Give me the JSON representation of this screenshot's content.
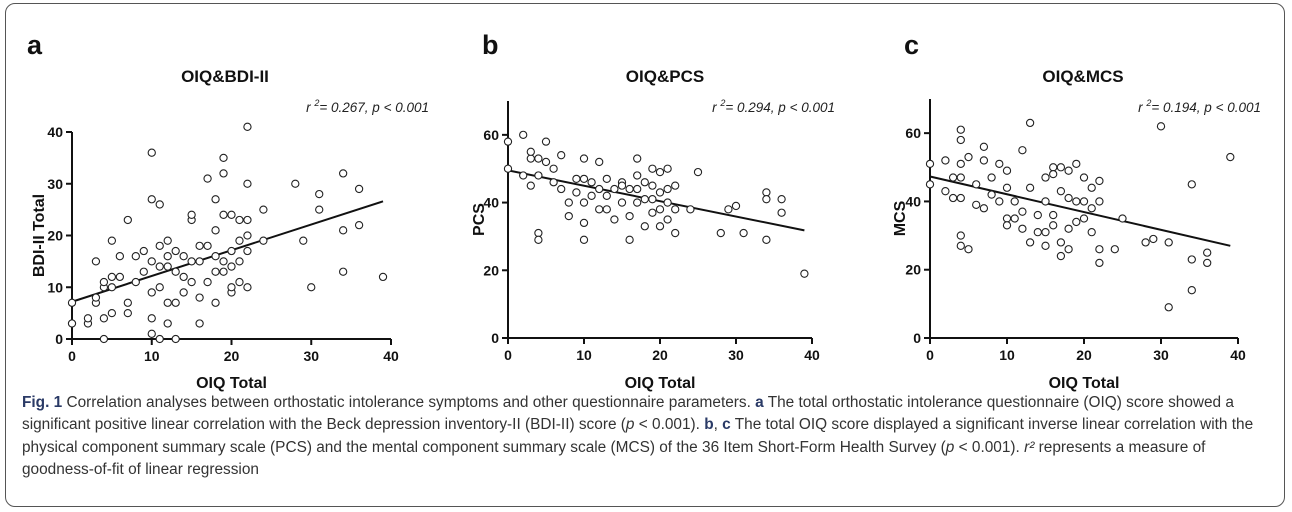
{
  "chart_data": [
    {
      "panel_letter": "a",
      "type": "scatter",
      "title": "OIQ&BDI-II",
      "xlabel": "OIQ Total",
      "ylabel": "BDI-II  Total",
      "annotation": {
        "r2_value": "0.267",
        "p": "< 0.001"
      },
      "xlim": [
        0,
        40
      ],
      "ylim": [
        0,
        40
      ],
      "xticks": [
        0,
        10,
        20,
        30,
        40
      ],
      "yticks": [
        0,
        10,
        20,
        30,
        40
      ],
      "points": [
        [
          0,
          3
        ],
        [
          0,
          7
        ],
        [
          2,
          3
        ],
        [
          2,
          4
        ],
        [
          3,
          7
        ],
        [
          3,
          8
        ],
        [
          3,
          15
        ],
        [
          4,
          0
        ],
        [
          4,
          4
        ],
        [
          4,
          10
        ],
        [
          4,
          11
        ],
        [
          5,
          5
        ],
        [
          5,
          10
        ],
        [
          5,
          12
        ],
        [
          5,
          19
        ],
        [
          6,
          12
        ],
        [
          6,
          16
        ],
        [
          7,
          5
        ],
        [
          7,
          7
        ],
        [
          7,
          23
        ],
        [
          8,
          11
        ],
        [
          8,
          16
        ],
        [
          9,
          13
        ],
        [
          9,
          17
        ],
        [
          10,
          1
        ],
        [
          10,
          4
        ],
        [
          10,
          9
        ],
        [
          10,
          15
        ],
        [
          10,
          27
        ],
        [
          10,
          36
        ],
        [
          11,
          0
        ],
        [
          11,
          10
        ],
        [
          11,
          14
        ],
        [
          11,
          18
        ],
        [
          11,
          26
        ],
        [
          12,
          3
        ],
        [
          12,
          7
        ],
        [
          12,
          14
        ],
        [
          12,
          16
        ],
        [
          12,
          19
        ],
        [
          13,
          0
        ],
        [
          13,
          7
        ],
        [
          13,
          13
        ],
        [
          13,
          17
        ],
        [
          14,
          9
        ],
        [
          14,
          12
        ],
        [
          14,
          16
        ],
        [
          15,
          11
        ],
        [
          15,
          15
        ],
        [
          15,
          23
        ],
        [
          15,
          24
        ],
        [
          16,
          3
        ],
        [
          16,
          8
        ],
        [
          16,
          15
        ],
        [
          16,
          18
        ],
        [
          17,
          11
        ],
        [
          17,
          18
        ],
        [
          17,
          31
        ],
        [
          18,
          7
        ],
        [
          18,
          13
        ],
        [
          18,
          16
        ],
        [
          18,
          21
        ],
        [
          18,
          27
        ],
        [
          19,
          13
        ],
        [
          19,
          15
        ],
        [
          19,
          24
        ],
        [
          19,
          32
        ],
        [
          19,
          35
        ],
        [
          20,
          9
        ],
        [
          20,
          10
        ],
        [
          20,
          14
        ],
        [
          20,
          17
        ],
        [
          20,
          24
        ],
        [
          21,
          11
        ],
        [
          21,
          15
        ],
        [
          21,
          19
        ],
        [
          21,
          23
        ],
        [
          22,
          10
        ],
        [
          22,
          17
        ],
        [
          22,
          20
        ],
        [
          22,
          23
        ],
        [
          22,
          30
        ],
        [
          22,
          41
        ],
        [
          24,
          25
        ],
        [
          24,
          19
        ],
        [
          28,
          30
        ],
        [
          29,
          19
        ],
        [
          30,
          10
        ],
        [
          31,
          25
        ],
        [
          31,
          28
        ],
        [
          34,
          13
        ],
        [
          34,
          21
        ],
        [
          34,
          32
        ],
        [
          36,
          22
        ],
        [
          36,
          29
        ],
        [
          39,
          12
        ]
      ],
      "fit_line": {
        "x": [
          0,
          39
        ],
        "y": [
          7.2,
          26.6
        ]
      }
    },
    {
      "panel_letter": "b",
      "type": "scatter",
      "title": "OIQ&PCS",
      "xlabel": "OIQ Total",
      "ylabel": "PCS",
      "annotation": {
        "r2_value": "0.294",
        "p": "< 0.001"
      },
      "xlim": [
        0,
        40
      ],
      "ylim": [
        0,
        70
      ],
      "xticks": [
        0,
        10,
        20,
        30,
        40
      ],
      "yticks": [
        0,
        20,
        40,
        60
      ],
      "points": [
        [
          0,
          58
        ],
        [
          0,
          50
        ],
        [
          2,
          60
        ],
        [
          2,
          48
        ],
        [
          3,
          53
        ],
        [
          3,
          55
        ],
        [
          3,
          45
        ],
        [
          4,
          53
        ],
        [
          4,
          48
        ],
        [
          4,
          31
        ],
        [
          4,
          29
        ],
        [
          5,
          58
        ],
        [
          5,
          52
        ],
        [
          6,
          50
        ],
        [
          6,
          46
        ],
        [
          7,
          54
        ],
        [
          7,
          44
        ],
        [
          8,
          40
        ],
        [
          8,
          36
        ],
        [
          9,
          47
        ],
        [
          9,
          43
        ],
        [
          10,
          53
        ],
        [
          10,
          47
        ],
        [
          10,
          40
        ],
        [
          10,
          34
        ],
        [
          10,
          29
        ],
        [
          11,
          46
        ],
        [
          11,
          42
        ],
        [
          12,
          52
        ],
        [
          12,
          44
        ],
        [
          12,
          38
        ],
        [
          13,
          47
        ],
        [
          13,
          42
        ],
        [
          13,
          38
        ],
        [
          14,
          44
        ],
        [
          14,
          35
        ],
        [
          15,
          46
        ],
        [
          15,
          45
        ],
        [
          15,
          40
        ],
        [
          16,
          44
        ],
        [
          16,
          36
        ],
        [
          16,
          29
        ],
        [
          17,
          53
        ],
        [
          17,
          48
        ],
        [
          17,
          44
        ],
        [
          17,
          40
        ],
        [
          18,
          46
        ],
        [
          18,
          41
        ],
        [
          18,
          33
        ],
        [
          19,
          50
        ],
        [
          19,
          45
        ],
        [
          19,
          41
        ],
        [
          19,
          37
        ],
        [
          20,
          49
        ],
        [
          20,
          43
        ],
        [
          20,
          38
        ],
        [
          20,
          33
        ],
        [
          21,
          50
        ],
        [
          21,
          44
        ],
        [
          21,
          40
        ],
        [
          21,
          35
        ],
        [
          22,
          45
        ],
        [
          22,
          38
        ],
        [
          22,
          31
        ],
        [
          24,
          38
        ],
        [
          25,
          49
        ],
        [
          28,
          31
        ],
        [
          29,
          38
        ],
        [
          30,
          39
        ],
        [
          31,
          31
        ],
        [
          34,
          43
        ],
        [
          34,
          41
        ],
        [
          34,
          29
        ],
        [
          36,
          41
        ],
        [
          36,
          37
        ],
        [
          39,
          19
        ]
      ],
      "fit_line": {
        "x": [
          0,
          39
        ],
        "y": [
          49.5,
          31.8
        ]
      }
    },
    {
      "panel_letter": "c",
      "type": "scatter",
      "title": "OIQ&MCS",
      "xlabel": "OIQ Total",
      "ylabel": "MCS",
      "annotation": {
        "r2_value": "0.194",
        "p": "< 0.001"
      },
      "xlim": [
        0,
        40
      ],
      "ylim": [
        0,
        70
      ],
      "xticks": [
        0,
        10,
        20,
        30,
        40
      ],
      "yticks": [
        0,
        20,
        40,
        60
      ],
      "points": [
        [
          0,
          51
        ],
        [
          0,
          45
        ],
        [
          2,
          52
        ],
        [
          2,
          43
        ],
        [
          3,
          47
        ],
        [
          3,
          41
        ],
        [
          4,
          61
        ],
        [
          4,
          58
        ],
        [
          4,
          51
        ],
        [
          4,
          47
        ],
        [
          4,
          41
        ],
        [
          4,
          30
        ],
        [
          4,
          27
        ],
        [
          5,
          53
        ],
        [
          5,
          26
        ],
        [
          6,
          39
        ],
        [
          6,
          45
        ],
        [
          7,
          52
        ],
        [
          7,
          56
        ],
        [
          7,
          38
        ],
        [
          8,
          47
        ],
        [
          8,
          42
        ],
        [
          9,
          51
        ],
        [
          9,
          40
        ],
        [
          10,
          49
        ],
        [
          10,
          44
        ],
        [
          10,
          35
        ],
        [
          10,
          33
        ],
        [
          11,
          40
        ],
        [
          11,
          35
        ],
        [
          12,
          55
        ],
        [
          12,
          37
        ],
        [
          12,
          32
        ],
        [
          13,
          63
        ],
        [
          13,
          44
        ],
        [
          13,
          28
        ],
        [
          14,
          36
        ],
        [
          14,
          31
        ],
        [
          15,
          47
        ],
        [
          15,
          40
        ],
        [
          15,
          31
        ],
        [
          15,
          27
        ],
        [
          16,
          50
        ],
        [
          16,
          48
        ],
        [
          16,
          36
        ],
        [
          16,
          33
        ],
        [
          17,
          50
        ],
        [
          17,
          43
        ],
        [
          17,
          28
        ],
        [
          17,
          24
        ],
        [
          18,
          49
        ],
        [
          18,
          41
        ],
        [
          18,
          32
        ],
        [
          18,
          26
        ],
        [
          19,
          51
        ],
        [
          19,
          40
        ],
        [
          19,
          34
        ],
        [
          20,
          47
        ],
        [
          20,
          40
        ],
        [
          20,
          35
        ],
        [
          21,
          44
        ],
        [
          21,
          38
        ],
        [
          21,
          31
        ],
        [
          22,
          46
        ],
        [
          22,
          40
        ],
        [
          22,
          26
        ],
        [
          22,
          22
        ],
        [
          24,
          26
        ],
        [
          25,
          35
        ],
        [
          28,
          28
        ],
        [
          29,
          29
        ],
        [
          30,
          62
        ],
        [
          31,
          28
        ],
        [
          31,
          9
        ],
        [
          34,
          45
        ],
        [
          34,
          23
        ],
        [
          34,
          14
        ],
        [
          36,
          25
        ],
        [
          36,
          22
        ],
        [
          39,
          53
        ]
      ],
      "fit_line": {
        "x": [
          0,
          39
        ],
        "y": [
          47.3,
          27.0
        ]
      }
    }
  ],
  "caption": {
    "fig_label": "Fig. 1",
    "intro": " Correlation analyses between orthostatic intolerance symptoms and other questionnaire parameters. ",
    "a_label": "a",
    "a_text": " The total orthostatic intolerance questionnaire (OIQ) score showed a significant positive linear correlation with the Beck depression inventory-II (BDI-II) score (",
    "p_symbol": "p",
    "p_text_1": " < 0.001). ",
    "b_label": "b",
    "comma": ", ",
    "c_label": "c",
    "bc_text": " The total OIQ score displayed a significant inverse linear correlation with the physical component summary scale (PCS) and the mental component summary scale (MCS) of the 36 Item Short-Form Health Survey (",
    "p_text_2": " < 0.001). ",
    "r2_symbol": "r²",
    "r2_text": " represents a measure of goodness-of-fit of linear regression"
  }
}
